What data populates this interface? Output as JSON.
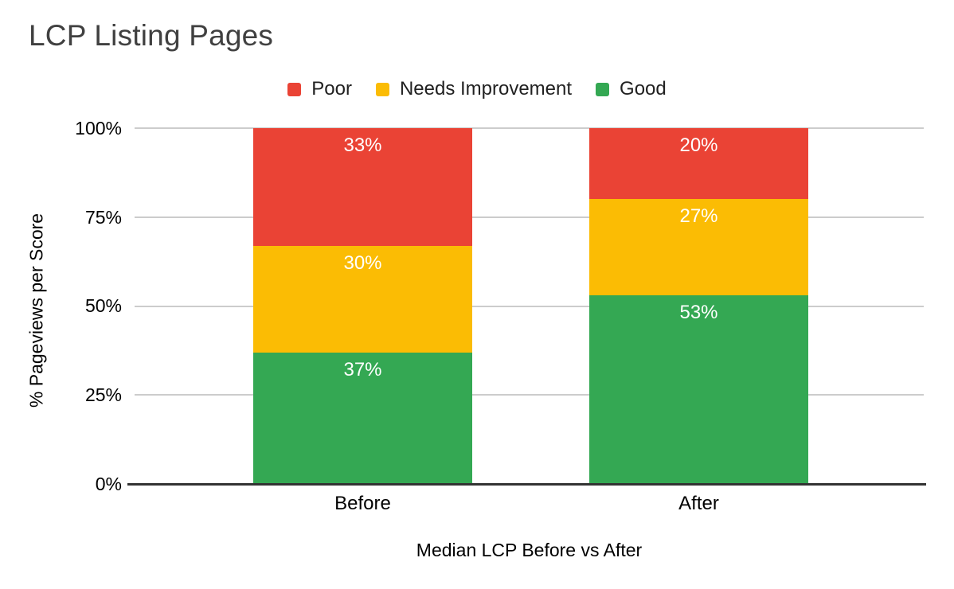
{
  "title": "LCP Listing Pages",
  "legend": {
    "items": [
      {
        "label": "Poor",
        "color": "#EA4335"
      },
      {
        "label": "Needs Improvement",
        "color": "#FBBC04"
      },
      {
        "label": "Good",
        "color": "#34A853"
      }
    ]
  },
  "y_axis": {
    "title": "% Pageviews per Score",
    "ticks": [
      "100%",
      "75%",
      "50%",
      "25%",
      "0%"
    ]
  },
  "x_axis": {
    "title": "Median LCP Before vs After",
    "categories": [
      "Before",
      "After"
    ]
  },
  "chart_data": {
    "type": "bar",
    "stacked": true,
    "title": "LCP Listing Pages",
    "xlabel": "Median LCP Before vs After",
    "ylabel": "% Pageviews per Score",
    "ylim": [
      0,
      100
    ],
    "grid": true,
    "legend_position": "top",
    "categories": [
      "Before",
      "After"
    ],
    "series": [
      {
        "name": "Poor",
        "color": "#EA4335",
        "values": [
          33,
          20
        ],
        "labels": [
          "33%",
          "20%"
        ]
      },
      {
        "name": "Needs Improvement",
        "color": "#FBBC04",
        "values": [
          30,
          27
        ],
        "labels": [
          "30%",
          "27%"
        ]
      },
      {
        "name": "Good",
        "color": "#34A853",
        "values": [
          37,
          53
        ],
        "labels": [
          "37%",
          "53%"
        ]
      }
    ],
    "style_colors": {
      "gridline": "#CCCCCC",
      "baseline": "#333333",
      "data_label": "#FFFFFF",
      "title": "#404040"
    }
  }
}
